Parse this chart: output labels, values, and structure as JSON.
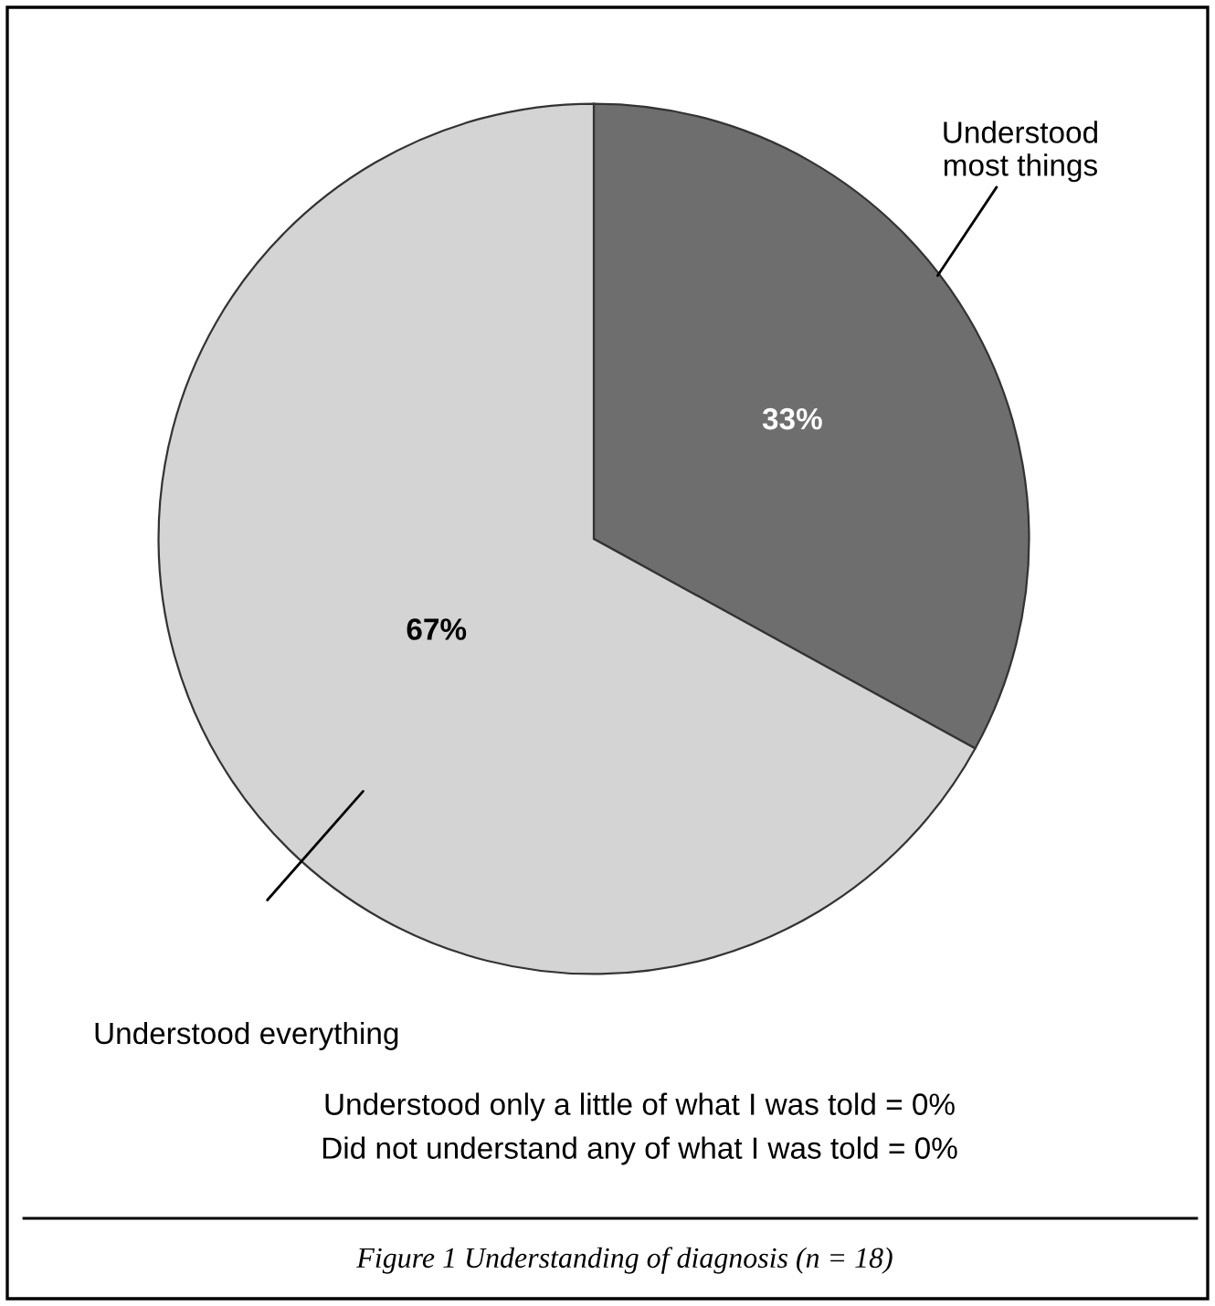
{
  "chart_data": {
    "type": "pie",
    "title": "Figure 1 Understanding of diagnosis (n = 18)",
    "categories": [
      "Understood most things",
      "Understood everything"
    ],
    "values": [
      33,
      67
    ],
    "colors": [
      "#6e6e6e",
      "#d4d4d4"
    ],
    "value_labels": [
      "33%",
      "67%"
    ],
    "annotations": [
      "Understood only a little of what I was told = 0%",
      "Did not understand any of what I was told = 0%"
    ],
    "legend": false
  }
}
